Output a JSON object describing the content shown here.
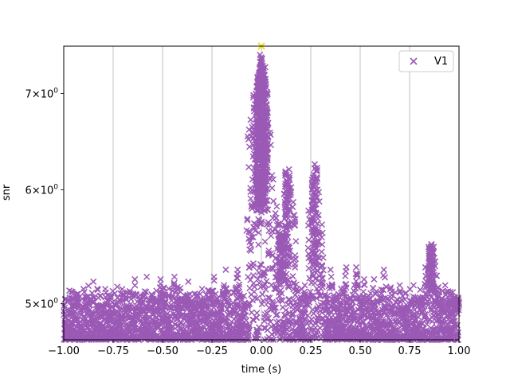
{
  "chart_data": {
    "type": "scatter",
    "title": "",
    "xlabel": "time (s)",
    "ylabel": "snr",
    "xlim": [
      -1.0,
      1.0
    ],
    "ylim": [
      4.72,
      7.55
    ],
    "y_scale": "log",
    "grid": "vertical lines at x ticks",
    "x_ticks": [
      -1.0,
      -0.75,
      -0.5,
      -0.25,
      0.0,
      0.25,
      0.5,
      0.75,
      1.0
    ],
    "x_tick_labels": [
      "−1.00",
      "−0.75",
      "−0.50",
      "−0.25",
      "0.00",
      "0.25",
      "0.50",
      "0.75",
      "1.00"
    ],
    "y_ticks": [
      5,
      6,
      7
    ],
    "y_tick_labels": [
      {
        "base": "5",
        "times": "×",
        "exp_base": "10",
        "exp": "0"
      },
      {
        "base": "6",
        "times": "×",
        "exp_base": "10",
        "exp": "0"
      },
      {
        "base": "7",
        "times": "×",
        "exp_base": "10",
        "exp": "0"
      }
    ],
    "legend": {
      "placement": "top-right",
      "entries": [
        "V1"
      ]
    },
    "colors": {
      "series": "#9b59b6",
      "peak": "#f0e020"
    },
    "series": [
      {
        "name": "V1",
        "marker": "x",
        "description_points": [
          [
            -0.97,
            5.05
          ],
          [
            -0.9,
            5.12
          ],
          [
            -0.85,
            5.18
          ],
          [
            -0.79,
            5.12
          ],
          [
            -0.7,
            5.08
          ],
          [
            -0.64,
            5.2
          ],
          [
            -0.58,
            5.22
          ],
          [
            -0.51,
            5.2
          ],
          [
            -0.44,
            5.22
          ],
          [
            -0.37,
            5.18
          ],
          [
            -0.3,
            5.12
          ],
          [
            -0.24,
            5.22
          ],
          [
            -0.18,
            5.28
          ],
          [
            -0.12,
            5.28
          ],
          [
            -0.06,
            5.3
          ],
          [
            0.0,
            7.55
          ],
          [
            0.0,
            7.38
          ],
          [
            0.0,
            7.1
          ],
          [
            -0.04,
            6.98
          ],
          [
            0.02,
            6.9
          ],
          [
            0.0,
            6.6
          ],
          [
            0.01,
            6.3
          ],
          [
            -0.02,
            6.1
          ],
          [
            0.03,
            5.9
          ],
          [
            0.06,
            6.1
          ],
          [
            0.1,
            5.55
          ],
          [
            0.12,
            5.6
          ],
          [
            0.14,
            6.2
          ],
          [
            0.17,
            5.3
          ],
          [
            0.22,
            5.15
          ],
          [
            0.27,
            6.25
          ],
          [
            0.28,
            6.0
          ],
          [
            0.29,
            5.6
          ],
          [
            0.35,
            5.28
          ],
          [
            0.43,
            5.3
          ],
          [
            0.48,
            5.3
          ],
          [
            0.52,
            5.2
          ],
          [
            0.57,
            5.2
          ],
          [
            0.62,
            5.28
          ],
          [
            0.66,
            5.1
          ],
          [
            0.7,
            5.15
          ],
          [
            0.77,
            5.15
          ],
          [
            0.83,
            5.3
          ],
          [
            0.86,
            5.5
          ],
          [
            0.88,
            5.35
          ],
          [
            0.93,
            5.15
          ],
          [
            0.98,
            5.05
          ]
        ]
      }
    ],
    "peak_point": {
      "x": 0.0,
      "y": 7.55
    }
  }
}
